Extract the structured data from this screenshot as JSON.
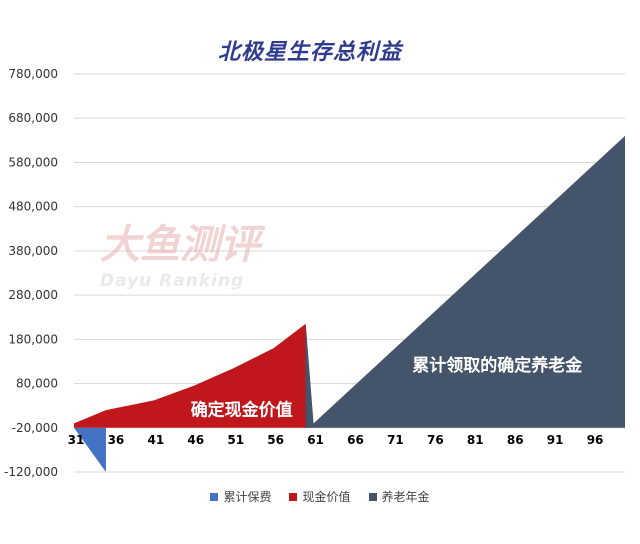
{
  "chart_data": {
    "type": "area",
    "title": "北极星生存总利益",
    "watermark": {
      "cn": "大鱼测评",
      "en": "Dayu Ranking"
    },
    "ylim": [
      -120000,
      780000
    ],
    "yticks": [
      "780,000",
      "680,000",
      "580,000",
      "480,000",
      "380,000",
      "280,000",
      "180,000",
      "80,000",
      "-20,000",
      "-120,000"
    ],
    "ytick_values": [
      780000,
      680000,
      580000,
      480000,
      380000,
      280000,
      180000,
      80000,
      -20000,
      -120000
    ],
    "xlim": [
      31,
      100
    ],
    "xticks": [
      "31",
      "36",
      "41",
      "46",
      "51",
      "56",
      "61",
      "66",
      "71",
      "76",
      "81",
      "86",
      "91",
      "96"
    ],
    "xtick_values": [
      31,
      36,
      41,
      46,
      51,
      56,
      61,
      66,
      71,
      76,
      81,
      86,
      91,
      96
    ],
    "grid": true,
    "legend_position": "bottom",
    "series": [
      {
        "name": "累计保费",
        "color": "#4472c4",
        "x": [
          31,
          35
        ],
        "y": [
          -20000,
          -120000
        ]
      },
      {
        "name": "现金价值",
        "color": "#c0171c",
        "x": [
          31,
          35,
          41,
          46,
          51,
          56,
          60
        ],
        "y": [
          -10000,
          20000,
          42000,
          75000,
          115000,
          160000,
          215000
        ]
      },
      {
        "name": "养老年金",
        "color": "#44546a",
        "x": [
          60,
          61,
          100
        ],
        "y": [
          220000,
          -10000,
          640000
        ]
      }
    ],
    "annotations": [
      {
        "text": "确定现金价值",
        "x": 52,
        "y": 15000
      },
      {
        "text": "累计领取的确定养老金",
        "x": 84,
        "y": 115000
      }
    ]
  }
}
